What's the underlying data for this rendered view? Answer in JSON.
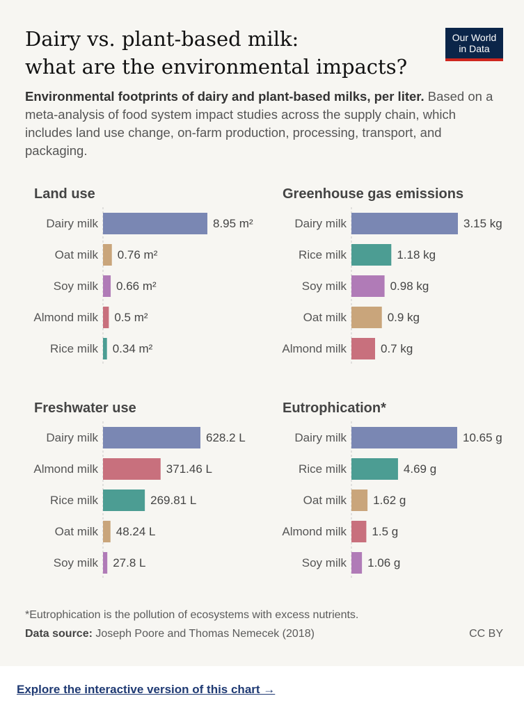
{
  "title_line1": "Dairy vs. plant-based milk:",
  "title_line2": "what are the environmental impacts?",
  "logo_line1": "Our World",
  "logo_line2": "in Data",
  "subtitle_bold": "Environmental footprints of dairy and plant-based milks, per liter.",
  "subtitle_rest": "Based on a meta-analysis of food system impact studies across the supply chain, which includes land use change, on-farm production, processing, transport, and packaging.",
  "footnote": "*Eutrophication is the pollution of ecosystems with excess nutrients.",
  "source_label": "Data source:",
  "source_text": "Joseph Poore and Thomas Nemecek (2018)",
  "license": "CC BY",
  "explore_link": "Explore the interactive version of this chart →",
  "colors": {
    "Dairy milk": "#7a87b3",
    "Oat milk": "#c9a57b",
    "Soy milk": "#b07bb7",
    "Almond milk": "#c8707d",
    "Rice milk": "#4c9d93"
  },
  "chart_data": [
    {
      "type": "bar",
      "orientation": "horizontal",
      "title": "Land use",
      "categories": [
        "Dairy milk",
        "Oat milk",
        "Soy milk",
        "Almond milk",
        "Rice milk"
      ],
      "values": [
        8.95,
        0.76,
        0.66,
        0.5,
        0.34
      ],
      "labels": [
        "8.95 m²",
        "0.76 m²",
        "0.66 m²",
        "0.5 m²",
        "0.34 m²"
      ]
    },
    {
      "type": "bar",
      "orientation": "horizontal",
      "title": "Greenhouse gas emissions",
      "categories": [
        "Dairy milk",
        "Rice milk",
        "Soy milk",
        "Oat milk",
        "Almond milk"
      ],
      "values": [
        3.15,
        1.18,
        0.98,
        0.9,
        0.7
      ],
      "labels": [
        "3.15 kg",
        "1.18 kg",
        "0.98 kg",
        "0.9 kg",
        "0.7 kg"
      ]
    },
    {
      "type": "bar",
      "orientation": "horizontal",
      "title": "Freshwater use",
      "categories": [
        "Dairy milk",
        "Almond milk",
        "Rice milk",
        "Oat milk",
        "Soy milk"
      ],
      "values": [
        628.2,
        371.46,
        269.81,
        48.24,
        27.8
      ],
      "labels": [
        "628.2 L",
        "371.46 L",
        "269.81 L",
        "48.24 L",
        "27.8 L"
      ]
    },
    {
      "type": "bar",
      "orientation": "horizontal",
      "title": "Eutrophication*",
      "categories": [
        "Dairy milk",
        "Rice milk",
        "Oat milk",
        "Almond milk",
        "Soy milk"
      ],
      "values": [
        10.65,
        4.69,
        1.62,
        1.5,
        1.06
      ],
      "labels": [
        "10.65 g",
        "4.69 g",
        "1.62 g",
        "1.5 g",
        "1.06 g"
      ]
    }
  ]
}
